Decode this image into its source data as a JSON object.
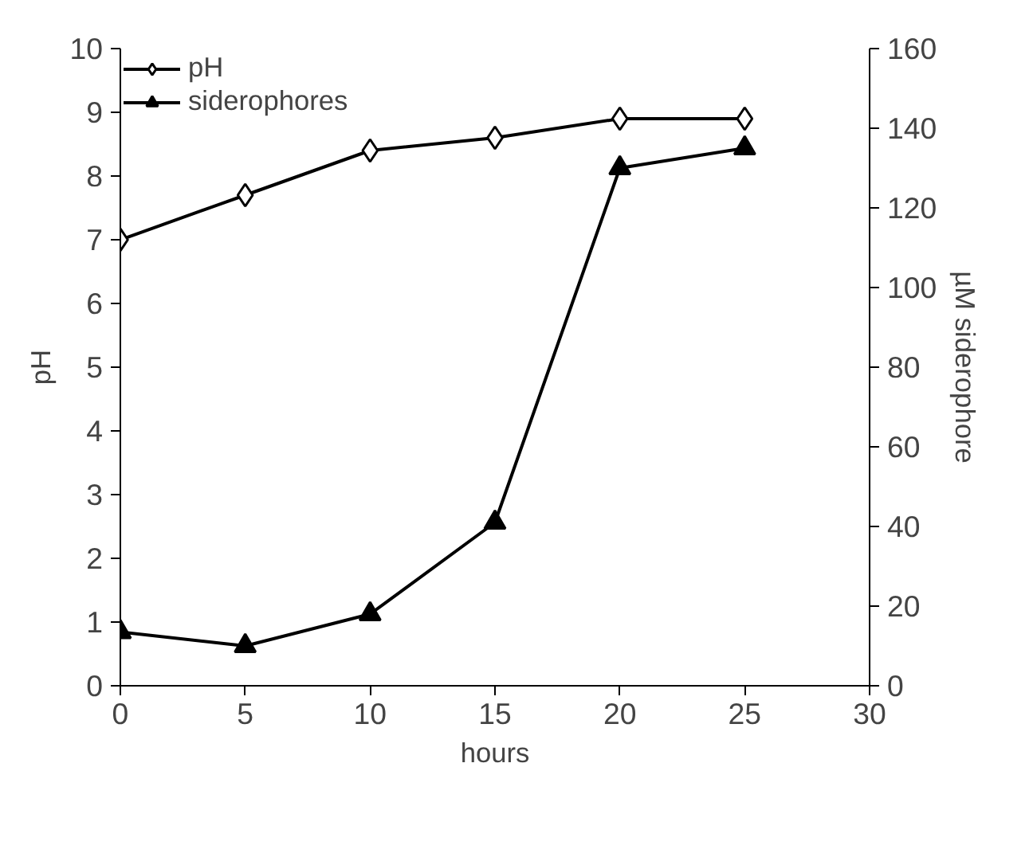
{
  "chart_data": {
    "type": "line",
    "x": [
      0,
      5,
      10,
      15,
      20,
      25
    ],
    "xlabel": "hours",
    "ylabel": "pH",
    "y2label": "µM siderophore",
    "xlim": [
      0,
      30
    ],
    "xticks": [
      0,
      5,
      10,
      15,
      20,
      25,
      30
    ],
    "ylim": [
      0,
      10
    ],
    "yticks": [
      0,
      1,
      2,
      3,
      4,
      5,
      6,
      7,
      8,
      9,
      10
    ],
    "y2lim": [
      0,
      160
    ],
    "y2ticks": [
      0,
      20,
      40,
      60,
      80,
      100,
      120,
      140,
      160
    ],
    "series": [
      {
        "name": "pH",
        "color": "#000000",
        "marker": "diamond",
        "values": [
          7.0,
          7.7,
          8.4,
          8.6,
          8.9,
          8.9
        ]
      },
      {
        "name": "siderophores",
        "color": "#000000",
        "marker": "triangle",
        "axis": "y2",
        "values": [
          13.5,
          10,
          18,
          41,
          130,
          135
        ]
      }
    ],
    "grid": false,
    "legend": "top left"
  }
}
